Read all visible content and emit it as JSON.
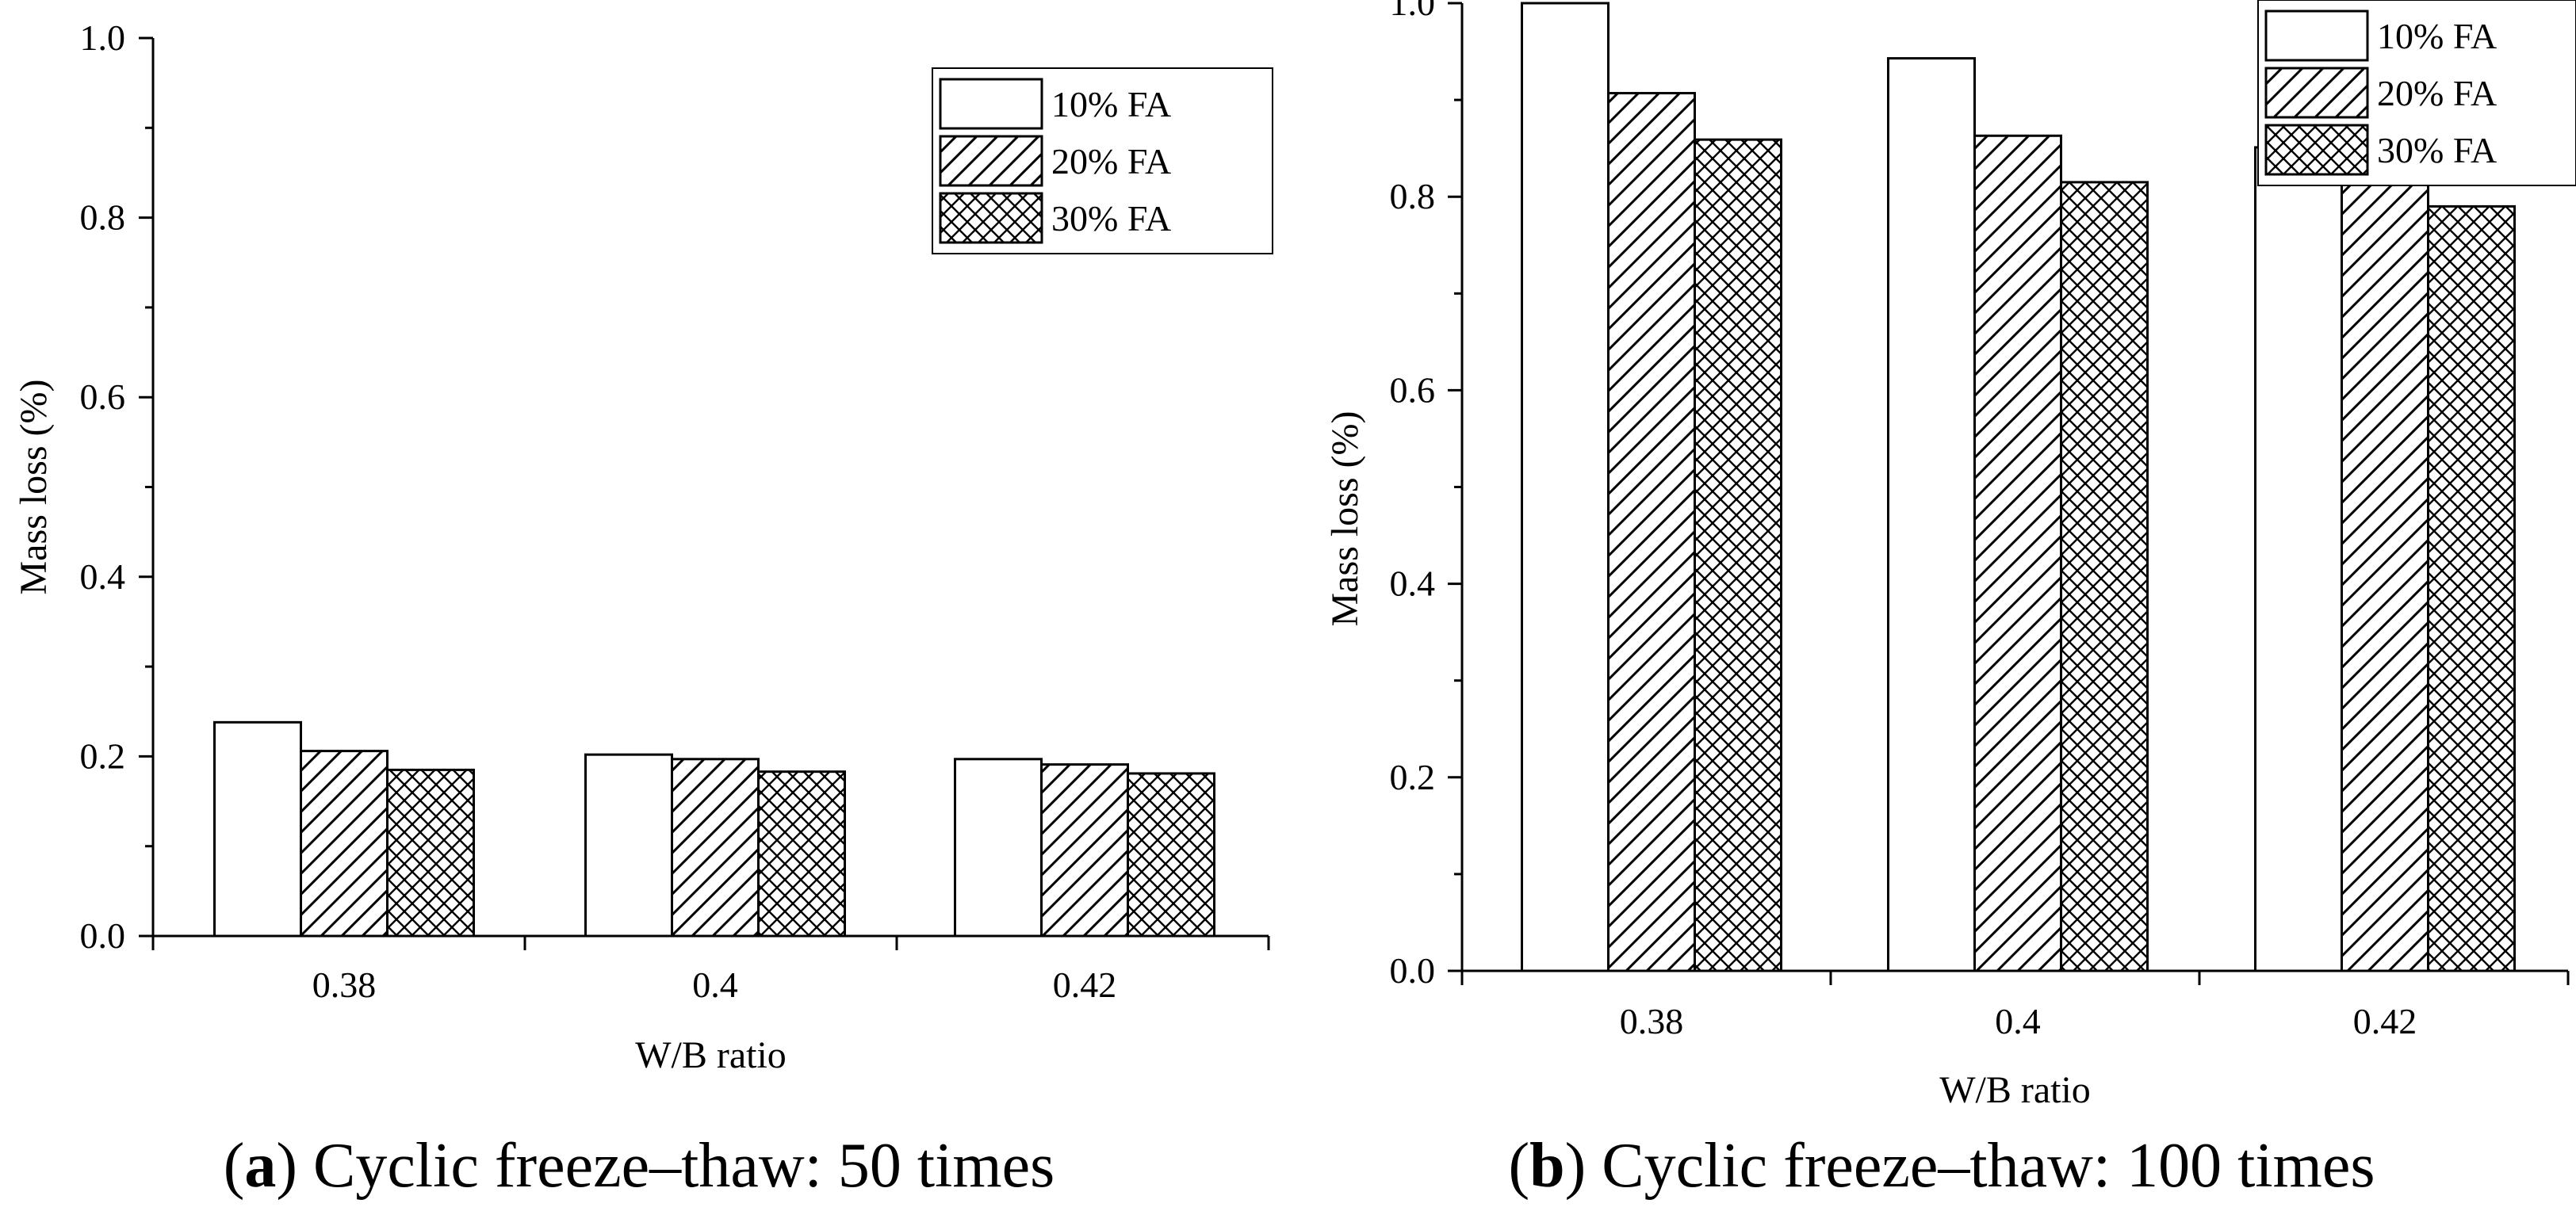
{
  "chart_data": [
    {
      "type": "bar",
      "panel": "a",
      "caption_letter": "a",
      "caption_text": "Cyclic freeze–thaw: 50 times",
      "categories": [
        "0.38",
        "0.4",
        "0.42"
      ],
      "series": [
        {
          "name": "10% FA",
          "pattern": "none",
          "values": [
            0.238,
            0.202,
            0.197
          ]
        },
        {
          "name": "20% FA",
          "pattern": "hatch",
          "values": [
            0.206,
            0.197,
            0.191
          ]
        },
        {
          "name": "30% FA",
          "pattern": "crosshatch",
          "values": [
            0.185,
            0.183,
            0.181
          ]
        }
      ],
      "xlabel": "W/B ratio",
      "ylabel": "Mass loss (%)",
      "ylim": [
        0,
        1.0
      ],
      "yticks": [
        "0.0",
        "0.2",
        "0.4",
        "0.6",
        "0.8",
        "1.0"
      ],
      "legend_position": "top-right"
    },
    {
      "type": "bar",
      "panel": "b",
      "caption_letter": "b",
      "caption_text": "Cyclic freeze–thaw: 100 times",
      "categories": [
        "0.38",
        "0.4",
        "0.42"
      ],
      "series": [
        {
          "name": "10% FA",
          "pattern": "none",
          "values": [
            1.0,
            0.943,
            0.851
          ]
        },
        {
          "name": "20% FA",
          "pattern": "hatch",
          "values": [
            0.907,
            0.863,
            0.813
          ]
        },
        {
          "name": "30% FA",
          "pattern": "crosshatch",
          "values": [
            0.859,
            0.815,
            0.79
          ]
        }
      ],
      "xlabel": "W/B ratio",
      "ylabel": "Mass loss (%)",
      "ylim": [
        0,
        1.0
      ],
      "yticks": [
        "0.0",
        "0.2",
        "0.4",
        "0.6",
        "0.8",
        "1.0"
      ],
      "legend_position": "top-right"
    }
  ]
}
